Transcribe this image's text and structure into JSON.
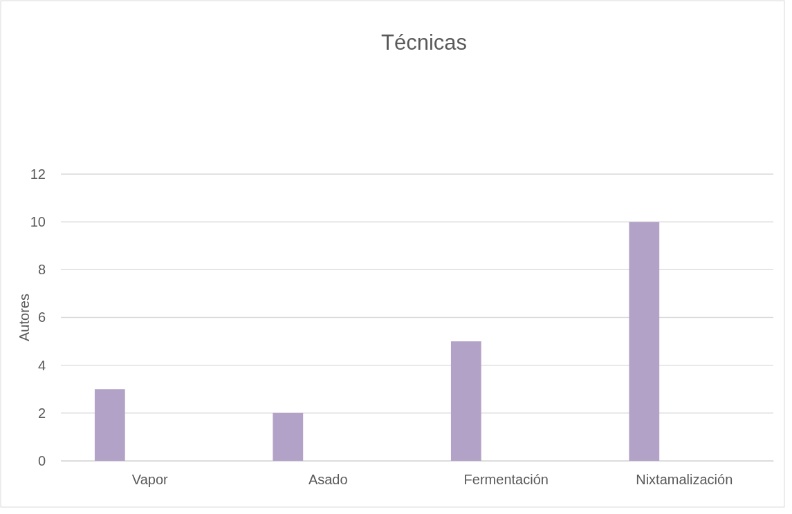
{
  "chart_data": {
    "type": "bar",
    "title": "Técnicas",
    "ylabel": "Autores",
    "categories": [
      "Vapor",
      "Asado",
      "Fermentación",
      "Nixtamalización"
    ],
    "values": [
      3,
      2,
      5,
      10
    ],
    "color": "#b3a2c7",
    "ylim": [
      0,
      12
    ],
    "yticks": [
      0,
      2,
      4,
      6,
      8,
      10,
      12
    ],
    "grid": "y"
  }
}
